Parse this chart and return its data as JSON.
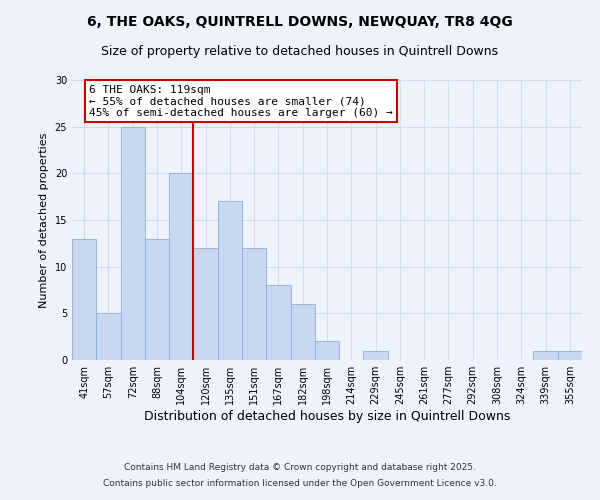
{
  "title": "6, THE OAKS, QUINTRELL DOWNS, NEWQUAY, TR8 4QG",
  "subtitle": "Size of property relative to detached houses in Quintrell Downs",
  "xlabel": "Distribution of detached houses by size in Quintrell Downs",
  "ylabel": "Number of detached properties",
  "bin_labels": [
    "41sqm",
    "57sqm",
    "72sqm",
    "88sqm",
    "104sqm",
    "120sqm",
    "135sqm",
    "151sqm",
    "167sqm",
    "182sqm",
    "198sqm",
    "214sqm",
    "229sqm",
    "245sqm",
    "261sqm",
    "277sqm",
    "292sqm",
    "308sqm",
    "324sqm",
    "339sqm",
    "355sqm"
  ],
  "bar_values": [
    13,
    5,
    25,
    13,
    20,
    12,
    17,
    12,
    8,
    6,
    2,
    0,
    1,
    0,
    0,
    0,
    0,
    0,
    0,
    1,
    1
  ],
  "bar_color": "#c8d8f0",
  "bar_edge_color": "#8ab0d8",
  "vline_index": 5,
  "vline_color": "#cc0000",
  "annotation_line1": "6 THE OAKS: 119sqm",
  "annotation_line2": "← 55% of detached houses are smaller (74)",
  "annotation_line3": "45% of semi-detached houses are larger (60) →",
  "annotation_box_facecolor": "#ffffff",
  "annotation_box_edgecolor": "#cc0000",
  "ylim": [
    0,
    30
  ],
  "yticks": [
    0,
    5,
    10,
    15,
    20,
    25,
    30
  ],
  "background_color": "#eef2fb",
  "grid_color": "#d0daf0",
  "footer_line1": "Contains HM Land Registry data © Crown copyright and database right 2025.",
  "footer_line2": "Contains public sector information licensed under the Open Government Licence v3.0.",
  "title_fontsize": 10,
  "subtitle_fontsize": 9,
  "xlabel_fontsize": 9,
  "ylabel_fontsize": 8,
  "tick_fontsize": 7,
  "annotation_fontsize": 8,
  "footer_fontsize": 6.5
}
